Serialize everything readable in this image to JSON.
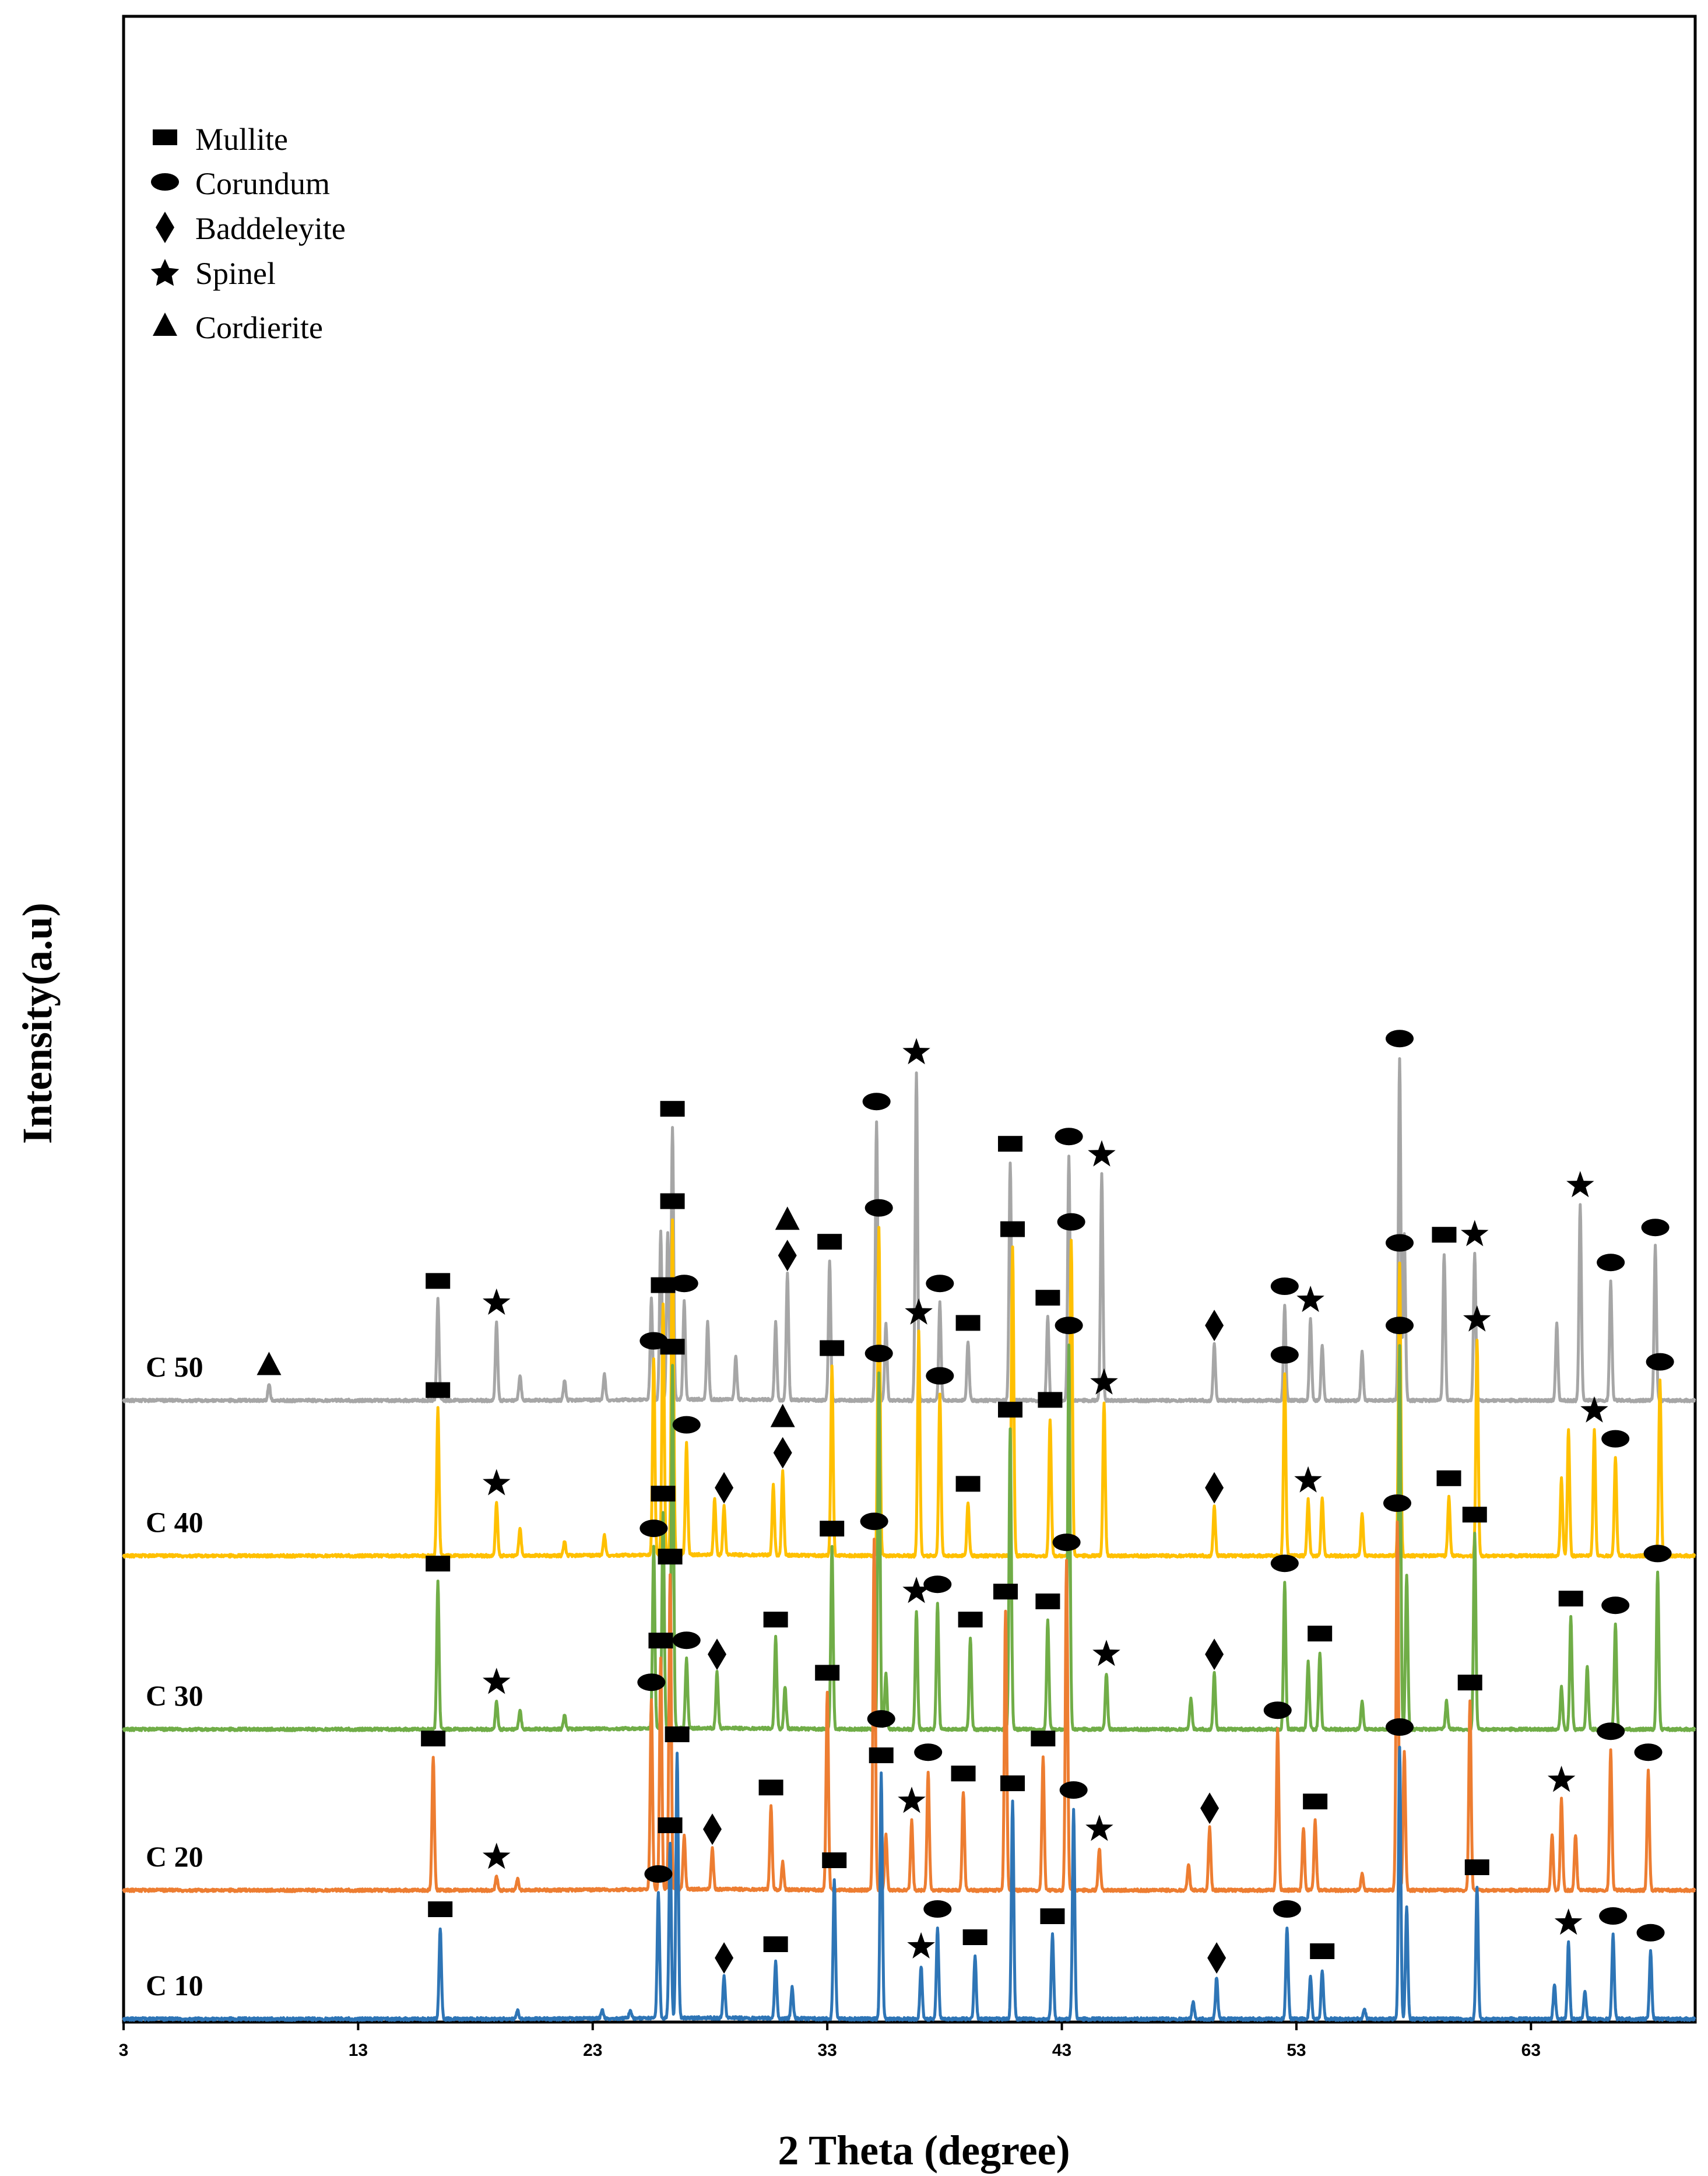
{
  "chart_data": {
    "type": "line",
    "title": "",
    "xlabel": "2 Theta (degree)",
    "ylabel": "Intensity(a.u)",
    "xlim": [
      3,
      70
    ],
    "x_ticks": [
      3,
      13,
      23,
      33,
      43,
      53,
      63
    ],
    "y_ticks": false,
    "grid": false,
    "legend": {
      "placement": "top-left",
      "entries": [
        {
          "name": "Mullite",
          "marker": "rectangle"
        },
        {
          "name": "Corundum",
          "marker": "ellipse"
        },
        {
          "name": "Baddeleyite",
          "marker": "diamond"
        },
        {
          "name": "Spinel",
          "marker": "star"
        },
        {
          "name": "Cordierite",
          "marker": "triangle"
        }
      ]
    },
    "series": [
      {
        "name": "C 50",
        "color": "#a6a6a6",
        "stack_offset": 4.42,
        "peaks": [
          [
            9.2,
            0.12
          ],
          [
            16.4,
            0.72
          ],
          [
            18.9,
            0.56
          ],
          [
            19.9,
            0.18
          ],
          [
            21.8,
            0.14
          ],
          [
            23.5,
            0.18
          ],
          [
            25.5,
            0.72
          ],
          [
            25.9,
            1.2
          ],
          [
            26.2,
            1.2
          ],
          [
            26.4,
            1.95
          ],
          [
            26.9,
            0.7
          ],
          [
            27.9,
            0.55
          ],
          [
            29.1,
            0.3
          ],
          [
            30.8,
            0.55
          ],
          [
            31.3,
            0.9
          ],
          [
            33.1,
            1.0
          ],
          [
            35.1,
            2.0
          ],
          [
            35.5,
            0.55
          ],
          [
            36.8,
            2.35
          ],
          [
            37.8,
            0.7
          ],
          [
            39.0,
            0.42
          ],
          [
            40.8,
            1.7
          ],
          [
            42.4,
            0.6
          ],
          [
            43.3,
            1.75
          ],
          [
            44.7,
            1.62
          ],
          [
            49.5,
            0.4
          ],
          [
            52.5,
            0.68
          ],
          [
            53.6,
            0.58
          ],
          [
            54.1,
            0.4
          ],
          [
            55.8,
            0.35
          ],
          [
            57.4,
            2.45
          ],
          [
            57.6,
            1.2
          ],
          [
            59.3,
            1.05
          ],
          [
            60.6,
            1.05
          ],
          [
            64.1,
            0.55
          ],
          [
            65.1,
            1.4
          ],
          [
            66.4,
            0.85
          ],
          [
            68.3,
            1.1
          ]
        ]
      },
      {
        "name": "C 40",
        "color": "#ffc000",
        "stack_offset": 3.31,
        "peaks": [
          [
            16.4,
            1.05
          ],
          [
            18.9,
            0.38
          ],
          [
            19.9,
            0.2
          ],
          [
            21.8,
            0.1
          ],
          [
            23.5,
            0.14
          ],
          [
            25.6,
            1.4
          ],
          [
            26.0,
            1.8
          ],
          [
            26.4,
            2.4
          ],
          [
            27.0,
            0.8
          ],
          [
            28.2,
            0.4
          ],
          [
            28.6,
            0.35
          ],
          [
            30.7,
            0.5
          ],
          [
            31.1,
            0.6
          ],
          [
            33.2,
            1.35
          ],
          [
            35.2,
            2.35
          ],
          [
            36.9,
            1.6
          ],
          [
            37.8,
            1.15
          ],
          [
            39.0,
            0.38
          ],
          [
            40.9,
            2.2
          ],
          [
            42.5,
            0.98
          ],
          [
            43.4,
            2.25
          ],
          [
            44.8,
            1.1
          ],
          [
            49.5,
            0.35
          ],
          [
            52.5,
            1.3
          ],
          [
            53.5,
            0.4
          ],
          [
            54.1,
            0.42
          ],
          [
            55.8,
            0.3
          ],
          [
            57.4,
            2.1
          ],
          [
            59.5,
            0.42
          ],
          [
            60.7,
            1.55
          ],
          [
            64.3,
            0.55
          ],
          [
            64.6,
            0.9
          ],
          [
            65.7,
            0.9
          ],
          [
            66.6,
            0.7
          ],
          [
            68.5,
            1.25
          ]
        ]
      },
      {
        "name": "C 30",
        "color": "#70ad47",
        "stack_offset": 2.07,
        "peaks": [
          [
            16.4,
            1.05
          ],
          [
            18.9,
            0.2
          ],
          [
            19.9,
            0.14
          ],
          [
            21.8,
            0.1
          ],
          [
            25.6,
            1.3
          ],
          [
            26.0,
            1.55
          ],
          [
            26.4,
            2.6
          ],
          [
            27.0,
            0.5
          ],
          [
            28.3,
            0.4
          ],
          [
            30.8,
            0.65
          ],
          [
            31.2,
            0.3
          ],
          [
            33.2,
            1.3
          ],
          [
            35.2,
            2.55
          ],
          [
            35.5,
            0.4
          ],
          [
            36.8,
            0.85
          ],
          [
            37.7,
            0.9
          ],
          [
            39.1,
            0.65
          ],
          [
            40.8,
            2.15
          ],
          [
            42.4,
            0.78
          ],
          [
            43.3,
            2.75
          ],
          [
            44.9,
            0.4
          ],
          [
            48.5,
            0.22
          ],
          [
            49.5,
            0.4
          ],
          [
            52.5,
            1.05
          ],
          [
            53.5,
            0.48
          ],
          [
            54.0,
            0.55
          ],
          [
            55.8,
            0.2
          ],
          [
            57.4,
            2.75
          ],
          [
            57.7,
            1.1
          ],
          [
            59.4,
            0.2
          ],
          [
            60.6,
            1.4
          ],
          [
            64.3,
            0.3
          ],
          [
            64.7,
            0.8
          ],
          [
            65.4,
            0.45
          ],
          [
            66.6,
            0.75
          ],
          [
            68.4,
            1.12
          ]
        ]
      },
      {
        "name": "C 20",
        "color": "#ed7d31",
        "stack_offset": 0.92,
        "peaks": [
          [
            16.2,
            0.95
          ],
          [
            18.9,
            0.1
          ],
          [
            19.8,
            0.08
          ],
          [
            25.5,
            1.35
          ],
          [
            25.9,
            1.65
          ],
          [
            26.3,
            2.25
          ],
          [
            26.9,
            0.38
          ],
          [
            28.1,
            0.3
          ],
          [
            30.6,
            0.6
          ],
          [
            31.1,
            0.2
          ],
          [
            33.0,
            1.42
          ],
          [
            35.0,
            2.5
          ],
          [
            35.5,
            0.4
          ],
          [
            36.6,
            0.5
          ],
          [
            37.3,
            0.85
          ],
          [
            38.8,
            0.7
          ],
          [
            40.6,
            2.0
          ],
          [
            42.2,
            0.95
          ],
          [
            43.2,
            2.35
          ],
          [
            44.6,
            0.3
          ],
          [
            48.4,
            0.18
          ],
          [
            49.3,
            0.45
          ],
          [
            52.2,
            1.15
          ],
          [
            53.3,
            0.45
          ],
          [
            53.8,
            0.5
          ],
          [
            55.8,
            0.12
          ],
          [
            57.3,
            2.63
          ],
          [
            57.6,
            1.0
          ],
          [
            60.4,
            1.35
          ],
          [
            63.9,
            0.4
          ],
          [
            64.3,
            0.65
          ],
          [
            64.9,
            0.4
          ],
          [
            66.4,
            1.0
          ],
          [
            68.0,
            0.85
          ]
        ]
      },
      {
        "name": "C 10",
        "color": "#2e75b6",
        "stack_offset": 0.0,
        "peaks": [
          [
            16.5,
            0.65
          ],
          [
            19.8,
            0.06
          ],
          [
            23.4,
            0.06
          ],
          [
            24.6,
            0.06
          ],
          [
            25.8,
            0.9
          ],
          [
            26.3,
            1.25
          ],
          [
            26.6,
            1.9
          ],
          [
            28.6,
            0.3
          ],
          [
            30.8,
            0.4
          ],
          [
            31.5,
            0.22
          ],
          [
            33.3,
            1.0
          ],
          [
            35.3,
            1.75
          ],
          [
            37.0,
            0.38
          ],
          [
            37.7,
            0.65
          ],
          [
            39.3,
            0.45
          ],
          [
            40.9,
            1.55
          ],
          [
            42.6,
            0.6
          ],
          [
            43.5,
            1.5
          ],
          [
            48.6,
            0.12
          ],
          [
            49.6,
            0.3
          ],
          [
            52.6,
            0.65
          ],
          [
            53.6,
            0.3
          ],
          [
            54.1,
            0.35
          ],
          [
            55.9,
            0.07
          ],
          [
            57.4,
            1.95
          ],
          [
            57.7,
            0.8
          ],
          [
            60.7,
            0.95
          ],
          [
            64.0,
            0.25
          ],
          [
            64.6,
            0.55
          ],
          [
            65.3,
            0.2
          ],
          [
            66.5,
            0.6
          ],
          [
            68.1,
            0.48
          ]
        ]
      }
    ],
    "labels": {
      "legend_mullite": "Mullite",
      "legend_corundum": "Corundum",
      "legend_baddeleyite": "Baddeleyite",
      "legend_spinel": "Spinel",
      "legend_cordierite": "Cordierite"
    }
  }
}
